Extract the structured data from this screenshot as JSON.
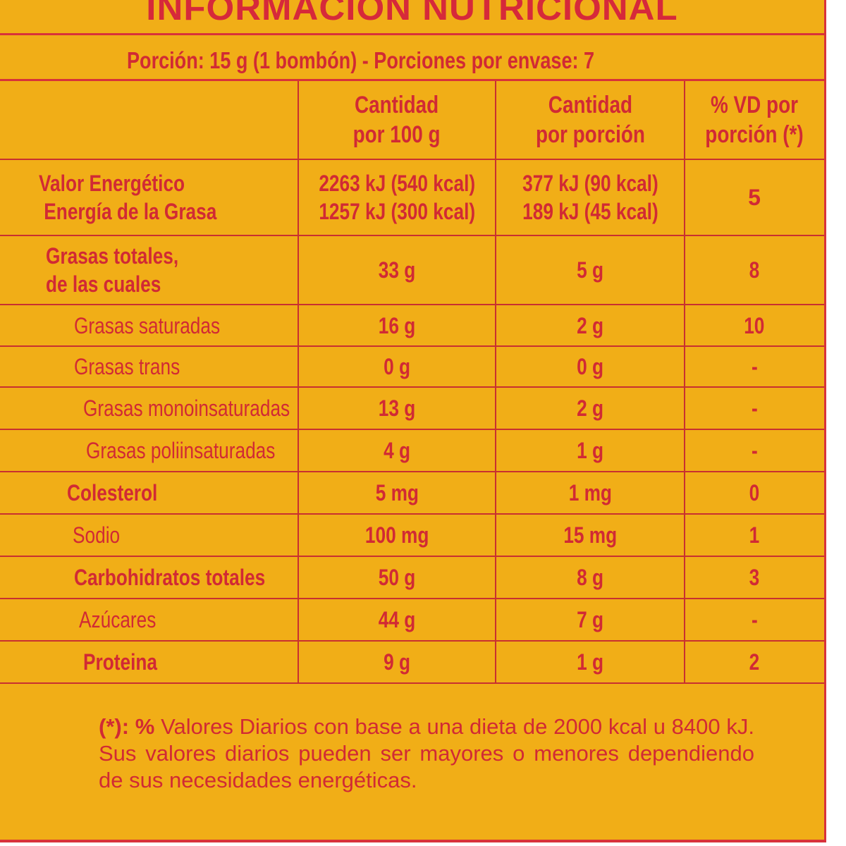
{
  "title": "INFORMACION NUTRICIONAL",
  "serving": "Porción: 15 g (1 bombón) - Porciones por envase: 7",
  "headers": [
    "",
    "Cantidad por 100 g",
    "Cantidad por porción",
    "% VD por porción (*)"
  ],
  "header_lines": {
    "col1": [
      "Cantidad",
      "por 100 g"
    ],
    "col2": [
      "Cantidad",
      "por porción"
    ],
    "col3": [
      "% VD por",
      "porción (*)"
    ]
  },
  "energy": {
    "labels": [
      "Valor Energético",
      "Energía de la Grasa"
    ],
    "per100": [
      "2263 kJ (540 kcal)",
      "1257 kJ (300 kcal)"
    ],
    "perPortion": [
      "377 kJ (90 kcal)",
      "189 kJ (45 kcal)"
    ],
    "vd": "5"
  },
  "rows": [
    {
      "label": "Grasas totales, de las cuales",
      "label_lines": [
        "Grasas totales,",
        " de las cuales"
      ],
      "per100": "33 g",
      "perPortion": "5 g",
      "vd": "8"
    },
    {
      "label": "Grasas saturadas",
      "per100": "16 g",
      "perPortion": "2 g",
      "vd": "10"
    },
    {
      "label": "Grasas trans",
      "per100": "0 g",
      "perPortion": "0 g",
      "vd": "-"
    },
    {
      "label": "Grasas monoinsaturadas",
      "per100": "13 g",
      "perPortion": "2 g",
      "vd": "-"
    },
    {
      "label": "Grasas poliinsaturadas",
      "per100": "4 g",
      "perPortion": "1 g",
      "vd": "-"
    },
    {
      "label": "Colesterol",
      "per100": "5 mg",
      "perPortion": "1 mg",
      "vd": "0"
    },
    {
      "label": "Sodio",
      "per100": "100 mg",
      "perPortion": "15 mg",
      "vd": "1"
    },
    {
      "label": "Carbohidratos totales",
      "per100": "50 g",
      "perPortion": "8 g",
      "vd": "3"
    },
    {
      "label": "Azúcares",
      "per100": "44 g",
      "perPortion": "7 g",
      "vd": "-"
    },
    {
      "label": "Proteina",
      "per100": "9 g",
      "perPortion": "1 g",
      "vd": "2"
    }
  ],
  "footnote": {
    "marker": "(*): %",
    "text": " Valores Diarios con base a una dieta de 2000 kcal u 8400 kJ. Sus valores diarios pueden ser mayores o menores dependiendo de sus necesidades energéticas."
  },
  "colors": {
    "background": "#f1ae17",
    "text": "#d12a34",
    "lines": "#d8323a"
  }
}
